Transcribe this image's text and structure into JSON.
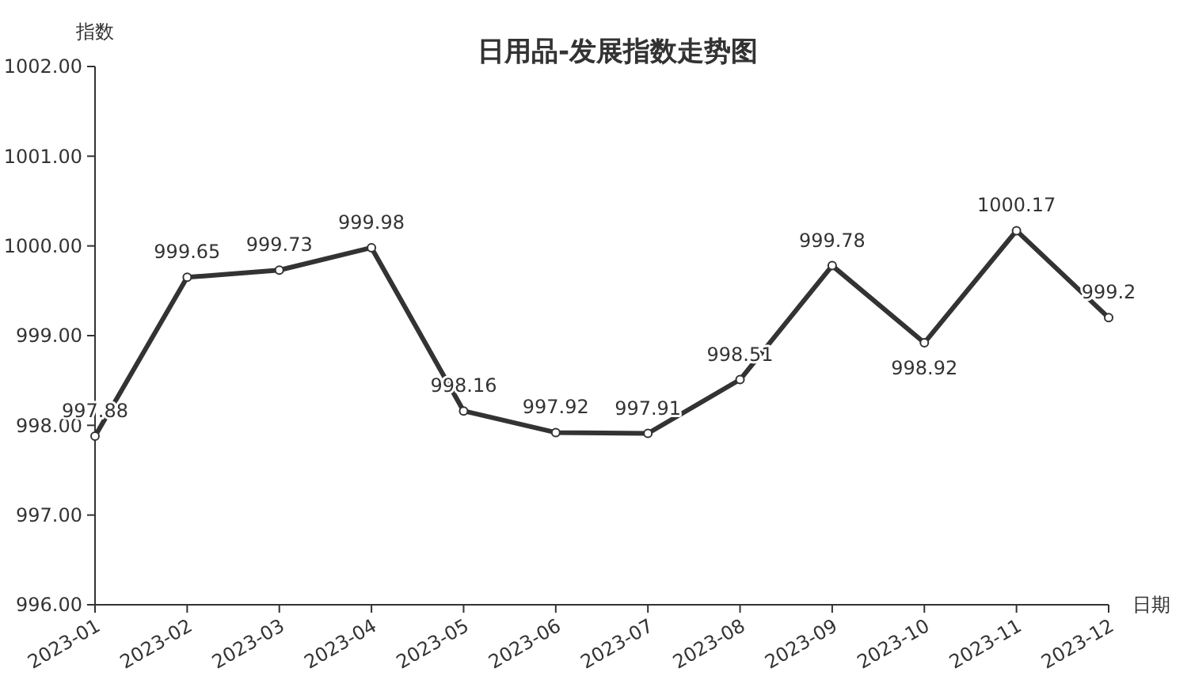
{
  "chart_data": {
    "type": "line",
    "title": "日用品-发展指数走势图",
    "xlabel": "日期",
    "ylabel": "指数",
    "categories": [
      "2023-01",
      "2023-02",
      "2023-03",
      "2023-04",
      "2023-05",
      "2023-06",
      "2023-07",
      "2023-08",
      "2023-09",
      "2023-10",
      "2023-11",
      "2023-12"
    ],
    "series": [
      {
        "color": "#333333",
        "values": [
          997.88,
          999.65,
          999.73,
          999.98,
          998.16,
          997.92,
          997.91,
          998.51,
          999.78,
          998.92,
          1000.17,
          999.2
        ]
      }
    ],
    "ylim": [
      996,
      1002
    ],
    "yticks": [
      {
        "value": 996,
        "label": "996.00"
      },
      {
        "value": 997,
        "label": "997.00"
      },
      {
        "value": 998,
        "label": "998.00"
      },
      {
        "value": 999,
        "label": "999.00"
      },
      {
        "value": 1000,
        "label": "1000.00"
      },
      {
        "value": 1001,
        "label": "1001.00"
      },
      {
        "value": 1002,
        "label": "1002.00"
      }
    ],
    "data_labels": true,
    "marker": "circle",
    "line_style": "solid",
    "grid": false
  }
}
